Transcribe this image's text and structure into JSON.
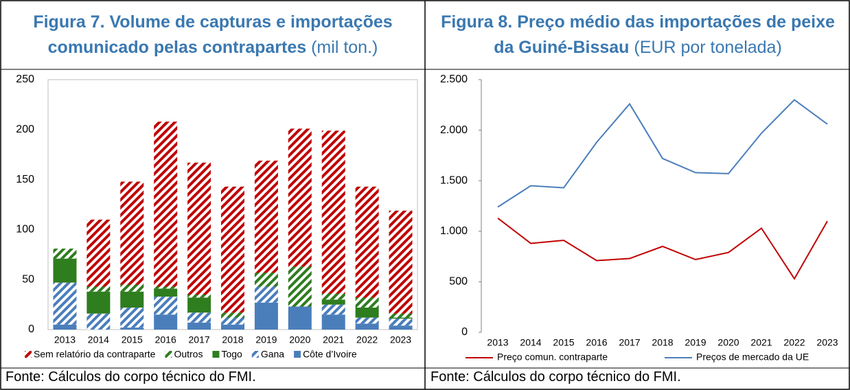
{
  "chart_data": [
    {
      "type": "bar",
      "stacked": true,
      "title": "Figura 7. Volume de capturas e importações comunicado pelas contrapartes",
      "units": "(mil ton.)",
      "note": "Fonte: Cálculos do corpo técnico do FMI.",
      "categories": [
        "2013",
        "2014",
        "2015",
        "2016",
        "2017",
        "2018",
        "2019",
        "2020",
        "2021",
        "2022",
        "2023"
      ],
      "series": [
        {
          "name": "Côte d’Ivoire",
          "color": "#4a7ebb",
          "hatch": false,
          "values": [
            5,
            0,
            2,
            15,
            7,
            5,
            27,
            23,
            15,
            6,
            4
          ]
        },
        {
          "name": "Gana",
          "color": "#4a7ebb",
          "hatch": true,
          "values": [
            42,
            16,
            20,
            18,
            10,
            7,
            16,
            0,
            10,
            6,
            7
          ]
        },
        {
          "name": "Togo",
          "color": "#2e7d1f",
          "hatch": false,
          "values": [
            24,
            22,
            16,
            8,
            15,
            0,
            0,
            0,
            5,
            10,
            1
          ]
        },
        {
          "name": "Outros",
          "color": "#2e7d1f",
          "hatch": true,
          "values": [
            10,
            5,
            7,
            2,
            3,
            5,
            14,
            40,
            6,
            10,
            4
          ]
        },
        {
          "name": "Sem relatório da contraparte",
          "color": "#c00000",
          "hatch": true,
          "values": [
            0,
            67,
            103,
            165,
            132,
            126,
            112,
            138,
            163,
            111,
            103
          ]
        }
      ],
      "ylim": [
        0,
        250
      ],
      "yticks": [
        0,
        50,
        100,
        150,
        200,
        250
      ]
    },
    {
      "type": "line",
      "title": "Figura 8. Preço médio das importações de peixe da Guiné-Bissau",
      "units": "(EUR por tonelada)",
      "note": "Fonte: Cálculos do corpo técnico do FMI.",
      "categories": [
        "2013",
        "2014",
        "2015",
        "2016",
        "2017",
        "2018",
        "2019",
        "2020",
        "2021",
        "2022",
        "2023"
      ],
      "series": [
        {
          "name": "Preço comun. contraparte",
          "color": "#c00000",
          "values": [
            1130,
            880,
            910,
            710,
            730,
            850,
            720,
            790,
            1030,
            530,
            1100
          ]
        },
        {
          "name": "Preços de mercado da UE",
          "color": "#4a7ebb",
          "values": [
            1240,
            1450,
            1430,
            1880,
            2260,
            1720,
            1580,
            1570,
            1970,
            2300,
            2060
          ]
        }
      ],
      "ylim": [
        0,
        2500
      ],
      "yticks": [
        0,
        500,
        {
          "value": 1000,
          "label": "1.000"
        },
        {
          "value": 1500,
          "label": "1.500"
        },
        {
          "value": 2000,
          "label": "2.000"
        },
        {
          "value": 2500,
          "label": "2.500"
        }
      ]
    }
  ]
}
